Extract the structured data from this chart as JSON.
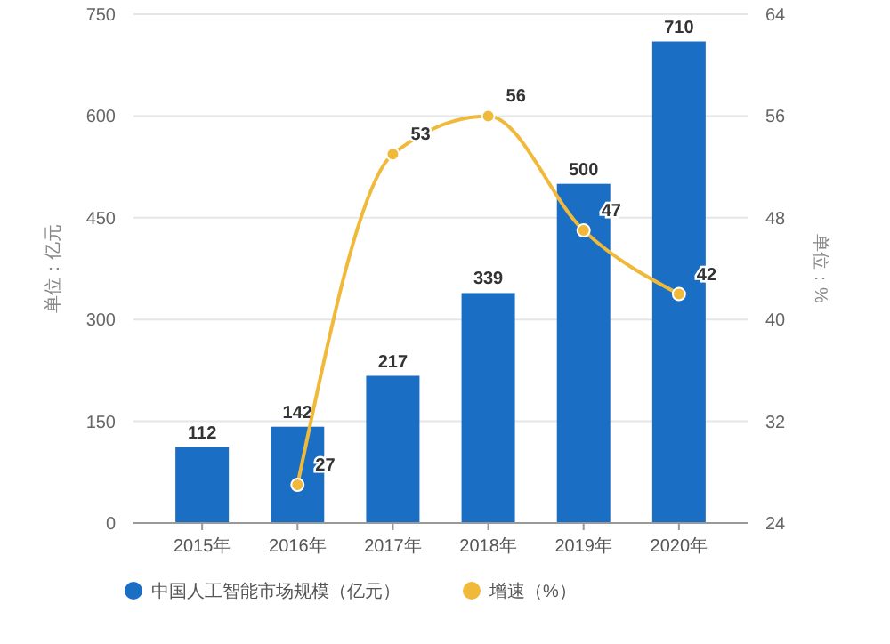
{
  "chart_data": {
    "type": "bar",
    "categories": [
      "2015年",
      "2016年",
      "2017年",
      "2018年",
      "2019年",
      "2020年"
    ],
    "series": [
      {
        "name": "中国人工智能市场规模（亿元）",
        "color": "#1a6fc4",
        "values": [
          112,
          142,
          217,
          339,
          500,
          710
        ]
      },
      {
        "name": "增速（%）",
        "type": "line",
        "axis": "y2",
        "color": "#f0b93a",
        "values": [
          null,
          27,
          53,
          56,
          47,
          42
        ]
      }
    ],
    "ylabel": "单位：亿元",
    "y2label": "单位：%",
    "ylim": [
      0,
      750
    ],
    "yticks": [
      0,
      150,
      300,
      450,
      600,
      750
    ],
    "y2lim": [
      24,
      64
    ],
    "y2ticks": [
      24,
      32,
      40,
      48,
      56,
      64
    ],
    "grid": "y",
    "legend": "bottom",
    "data_labels": true,
    "marker": "circle"
  }
}
